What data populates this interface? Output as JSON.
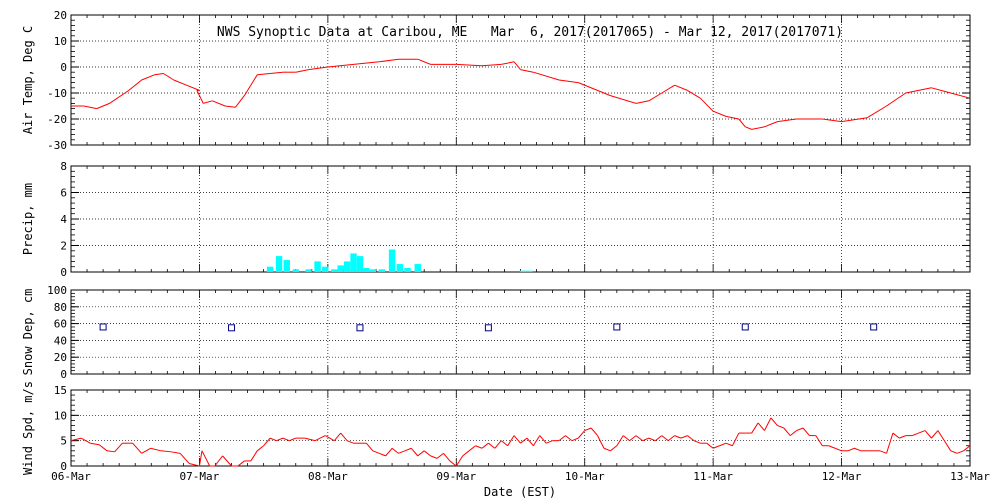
{
  "chart_data": {
    "type": "multi-panel",
    "title": "NWS Synoptic Data at Caribou, ME   Mar  6, 2017(2017065) - Mar 12, 2017(2017071)",
    "xlabel": "Date (EST)",
    "x_ticks": [
      "06-Mar",
      "07-Mar",
      "08-Mar",
      "09-Mar",
      "10-Mar",
      "11-Mar",
      "12-Mar",
      "13-Mar"
    ],
    "xlim": [
      0,
      7
    ],
    "grid": true,
    "panels": [
      {
        "name": "air_temp",
        "type": "line",
        "ylabel": "Air Temp, Deg C",
        "ylim": [
          -30,
          20
        ],
        "yticks": [
          "20",
          "10",
          "0",
          "-10",
          "-20",
          "-30"
        ],
        "color": "#ff0000",
        "points": [
          [
            0,
            -15
          ],
          [
            0.1,
            -15
          ],
          [
            0.2,
            -16
          ],
          [
            0.3,
            -14
          ],
          [
            0.45,
            -9
          ],
          [
            0.55,
            -5
          ],
          [
            0.65,
            -3
          ],
          [
            0.72,
            -2.5
          ],
          [
            0.8,
            -5
          ],
          [
            0.9,
            -7
          ],
          [
            1.0,
            -9
          ],
          [
            0.98,
            -9
          ],
          [
            1.03,
            -14
          ],
          [
            1.1,
            -13
          ],
          [
            1.2,
            -15
          ],
          [
            1.28,
            -15.5
          ],
          [
            1.35,
            -11
          ],
          [
            1.45,
            -3
          ],
          [
            1.55,
            -2.5
          ],
          [
            1.65,
            -2
          ],
          [
            1.75,
            -2
          ],
          [
            1.85,
            -1
          ],
          [
            2.0,
            0
          ],
          [
            2.2,
            1
          ],
          [
            2.4,
            2
          ],
          [
            2.55,
            3
          ],
          [
            2.7,
            3
          ],
          [
            2.8,
            1
          ],
          [
            3.0,
            1
          ],
          [
            3.2,
            0.5
          ],
          [
            3.35,
            1
          ],
          [
            3.45,
            2
          ],
          [
            3.5,
            -1
          ],
          [
            3.6,
            -2
          ],
          [
            3.8,
            -5
          ],
          [
            3.95,
            -6
          ],
          [
            4.2,
            -11
          ],
          [
            4.4,
            -14
          ],
          [
            4.5,
            -13
          ],
          [
            4.6,
            -10
          ],
          [
            4.7,
            -7
          ],
          [
            4.8,
            -9
          ],
          [
            4.9,
            -12
          ],
          [
            5.0,
            -17
          ],
          [
            5.1,
            -19
          ],
          [
            5.2,
            -20
          ],
          [
            5.25,
            -23
          ],
          [
            5.3,
            -24
          ],
          [
            5.4,
            -23
          ],
          [
            5.5,
            -21
          ],
          [
            5.65,
            -20
          ],
          [
            5.85,
            -20
          ],
          [
            6.0,
            -21
          ],
          [
            6.2,
            -19.5
          ],
          [
            6.35,
            -15
          ],
          [
            6.5,
            -10
          ],
          [
            6.7,
            -8
          ],
          [
            6.85,
            -10
          ],
          [
            7.0,
            -12
          ]
        ]
      },
      {
        "name": "precip",
        "type": "bar",
        "ylabel": "Precip, mm",
        "ylim": [
          0,
          8
        ],
        "yticks": [
          "8",
          "6",
          "4",
          "2",
          "0"
        ],
        "color": "#00ffff",
        "bar_width": 0.05,
        "bars": [
          [
            1.55,
            0.4
          ],
          [
            1.62,
            1.2
          ],
          [
            1.68,
            0.9
          ],
          [
            1.75,
            0.2
          ],
          [
            1.85,
            0.2
          ],
          [
            1.92,
            0.8
          ],
          [
            1.98,
            0.4
          ],
          [
            2.05,
            0.2
          ],
          [
            2.1,
            0.5
          ],
          [
            2.15,
            0.8
          ],
          [
            2.2,
            1.4
          ],
          [
            2.25,
            1.2
          ],
          [
            2.3,
            0.3
          ],
          [
            2.35,
            0.2
          ],
          [
            2.42,
            0.2
          ],
          [
            2.5,
            1.7
          ],
          [
            2.56,
            0.6
          ],
          [
            2.62,
            0.3
          ],
          [
            2.7,
            0.6
          ],
          [
            3.52,
            0.1
          ],
          [
            3.57,
            0.1
          ]
        ]
      },
      {
        "name": "snow_depth",
        "type": "scatter",
        "ylabel": "Snow Dep, cm",
        "ylim": [
          0,
          100
        ],
        "yticks": [
          "100",
          "80",
          "60",
          "40",
          "20",
          "0"
        ],
        "color": "#000080",
        "points": [
          [
            0.25,
            56
          ],
          [
            1.25,
            55
          ],
          [
            2.25,
            55
          ],
          [
            3.25,
            55
          ],
          [
            4.25,
            56
          ],
          [
            5.25,
            56
          ],
          [
            6.25,
            56
          ]
        ]
      },
      {
        "name": "wind_speed",
        "type": "line",
        "ylabel": "Wind Spd, m/s",
        "ylim": [
          0,
          15
        ],
        "yticks": [
          "15",
          "10",
          "5",
          "0"
        ],
        "color": "#ff0000",
        "points": [
          [
            0,
            5
          ],
          [
            0.08,
            5.5
          ],
          [
            0.15,
            4.5
          ],
          [
            0.22,
            4.2
          ],
          [
            0.28,
            3
          ],
          [
            0.34,
            2.8
          ],
          [
            0.4,
            4.5
          ],
          [
            0.48,
            4.5
          ],
          [
            0.55,
            2.5
          ],
          [
            0.62,
            3.5
          ],
          [
            0.7,
            3
          ],
          [
            0.78,
            2.8
          ],
          [
            0.85,
            2.5
          ],
          [
            0.92,
            0.5
          ],
          [
            1.0,
            -0.5
          ],
          [
            1.02,
            3
          ],
          [
            1.08,
            0
          ],
          [
            1.12,
            0
          ],
          [
            1.18,
            2
          ],
          [
            1.25,
            0
          ],
          [
            1.3,
            0
          ],
          [
            1.35,
            1
          ],
          [
            1.4,
            1
          ],
          [
            1.45,
            3
          ],
          [
            1.5,
            4
          ],
          [
            1.55,
            5.5
          ],
          [
            1.6,
            5
          ],
          [
            1.65,
            5.5
          ],
          [
            1.7,
            5
          ],
          [
            1.75,
            5.5
          ],
          [
            1.82,
            5.5
          ],
          [
            1.9,
            5
          ],
          [
            1.98,
            6
          ],
          [
            2.05,
            5
          ],
          [
            2.1,
            6.5
          ],
          [
            2.15,
            5
          ],
          [
            2.2,
            4.5
          ],
          [
            2.3,
            4.5
          ],
          [
            2.35,
            3
          ],
          [
            2.4,
            2.5
          ],
          [
            2.45,
            2
          ],
          [
            2.5,
            3.5
          ],
          [
            2.55,
            2.5
          ],
          [
            2.6,
            3
          ],
          [
            2.65,
            3.5
          ],
          [
            2.7,
            2
          ],
          [
            2.75,
            3
          ],
          [
            2.8,
            2
          ],
          [
            2.85,
            1.5
          ],
          [
            2.9,
            2.5
          ],
          [
            2.95,
            1
          ],
          [
            3.0,
            0
          ],
          [
            3.05,
            2
          ],
          [
            3.1,
            3
          ],
          [
            3.15,
            4
          ],
          [
            3.2,
            3.5
          ],
          [
            3.25,
            4.5
          ],
          [
            3.3,
            3.5
          ],
          [
            3.35,
            5
          ],
          [
            3.4,
            4
          ],
          [
            3.45,
            6
          ],
          [
            3.5,
            4.5
          ],
          [
            3.55,
            5.5
          ],
          [
            3.6,
            4
          ],
          [
            3.65,
            6
          ],
          [
            3.7,
            4.5
          ],
          [
            3.75,
            5
          ],
          [
            3.8,
            5
          ],
          [
            3.85,
            6
          ],
          [
            3.9,
            5
          ],
          [
            3.95,
            5.5
          ],
          [
            4.0,
            7
          ],
          [
            4.05,
            7.5
          ],
          [
            4.1,
            6
          ],
          [
            4.15,
            3.5
          ],
          [
            4.2,
            3
          ],
          [
            4.25,
            4
          ],
          [
            4.3,
            6
          ],
          [
            4.35,
            5
          ],
          [
            4.4,
            6
          ],
          [
            4.45,
            5
          ],
          [
            4.5,
            5.5
          ],
          [
            4.55,
            5
          ],
          [
            4.6,
            6
          ],
          [
            4.65,
            5
          ],
          [
            4.7,
            6
          ],
          [
            4.75,
            5.5
          ],
          [
            4.8,
            6
          ],
          [
            4.85,
            5
          ],
          [
            4.9,
            4.5
          ],
          [
            4.95,
            4.5
          ],
          [
            5.0,
            3.5
          ],
          [
            5.05,
            4
          ],
          [
            5.1,
            4.5
          ],
          [
            5.15,
            4
          ],
          [
            5.2,
            6.5
          ],
          [
            5.25,
            6.5
          ],
          [
            5.3,
            6.5
          ],
          [
            5.35,
            8.5
          ],
          [
            5.4,
            7
          ],
          [
            5.45,
            9.5
          ],
          [
            5.5,
            8
          ],
          [
            5.55,
            7.5
          ],
          [
            5.6,
            6
          ],
          [
            5.65,
            7
          ],
          [
            5.7,
            7.5
          ],
          [
            5.75,
            6
          ],
          [
            5.8,
            6
          ],
          [
            5.85,
            4
          ],
          [
            5.9,
            4
          ],
          [
            5.95,
            3.5
          ],
          [
            6.0,
            3
          ],
          [
            6.05,
            3
          ],
          [
            6.1,
            3.5
          ],
          [
            6.15,
            3
          ],
          [
            6.2,
            3
          ],
          [
            6.25,
            3
          ],
          [
            6.3,
            3
          ],
          [
            6.35,
            2.5
          ],
          [
            6.4,
            6.5
          ],
          [
            6.45,
            5.5
          ],
          [
            6.5,
            6
          ],
          [
            6.55,
            6
          ],
          [
            6.6,
            6.5
          ],
          [
            6.65,
            7
          ],
          [
            6.7,
            5.5
          ],
          [
            6.75,
            7
          ],
          [
            6.8,
            5
          ],
          [
            6.85,
            3
          ],
          [
            6.9,
            2.5
          ],
          [
            6.95,
            3
          ],
          [
            7.0,
            4
          ]
        ]
      }
    ]
  }
}
